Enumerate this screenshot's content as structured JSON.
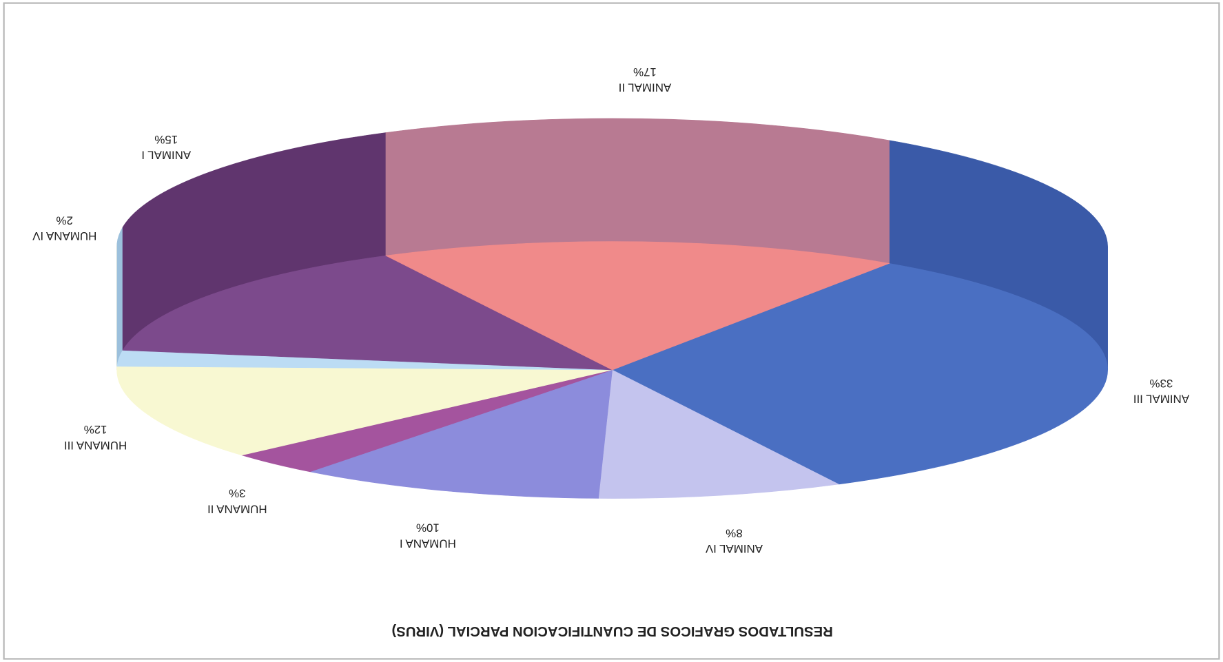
{
  "chart_data": {
    "type": "pie3d",
    "title": "RESULTADOS GRAFICOS DE CUANTIFICACION PARCIAL (VIRUS)",
    "categories": [
      "ANIMAL III",
      "ANIMAL IV",
      "HUMANA I",
      "HUMANA II",
      "HUMANA III",
      "HUMANA IV",
      "ANIMAL I",
      "ANIMAL II"
    ],
    "values": [
      33,
      8,
      10,
      3,
      12,
      2,
      15,
      17
    ],
    "value_labels": [
      "33%",
      "8%",
      "10%",
      "3%",
      "12%",
      "2%",
      "15%",
      "17%"
    ],
    "colors": [
      "#4a6fc2",
      "#c4c4ee",
      "#8c8cdc",
      "#a4549e",
      "#f8f8d2",
      "#bcdcf4",
      "#7c4a8c",
      "#f08a8a"
    ],
    "side_colors": [
      "#3a5aa8",
      "#a8a8d8",
      "#7070c0",
      "#8a4084",
      "#dcdcb0",
      "#9cc0dc",
      "#60356e",
      "#b87a92"
    ]
  }
}
